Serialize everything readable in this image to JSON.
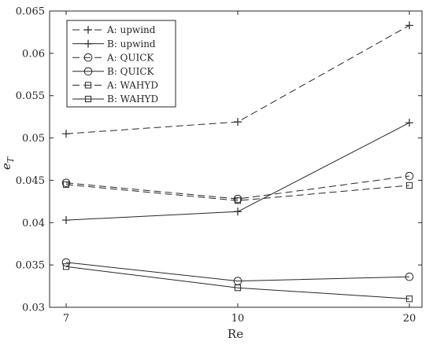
{
  "chart_data": {
    "type": "line",
    "x_categories": [
      "7",
      "10",
      "20"
    ],
    "xlabel": "Re",
    "ylabel": "e",
    "ylabel_sub": "T",
    "ylim": [
      0.03,
      0.065
    ],
    "yticks": [
      0.03,
      0.035,
      0.04,
      0.045,
      0.05,
      0.055,
      0.06,
      0.065
    ],
    "ytick_labels": [
      "0.03",
      "0.035",
      "0.04",
      "0.045",
      "0.05",
      "0.055",
      "0.06",
      "0.065"
    ],
    "grid": false,
    "legend_position": "top-left",
    "series": [
      {
        "name": "A: upwind",
        "line": "dashed",
        "marker": "plus",
        "values": [
          0.0505,
          0.0519,
          0.0633
        ]
      },
      {
        "name": "B: upwind",
        "line": "solid",
        "marker": "plus",
        "values": [
          0.0403,
          0.0413,
          0.0518
        ]
      },
      {
        "name": "A: QUICK",
        "line": "dashed",
        "marker": "circle",
        "values": [
          0.0447,
          0.0428,
          0.0455
        ]
      },
      {
        "name": "B: QUICK",
        "line": "solid",
        "marker": "circle",
        "values": [
          0.0353,
          0.0331,
          0.0336
        ]
      },
      {
        "name": "A: WAHYD",
        "line": "dashed",
        "marker": "square",
        "values": [
          0.0445,
          0.0426,
          0.0444
        ]
      },
      {
        "name": "B: WAHYD",
        "line": "solid",
        "marker": "square",
        "values": [
          0.0348,
          0.0323,
          0.031
        ]
      }
    ]
  }
}
